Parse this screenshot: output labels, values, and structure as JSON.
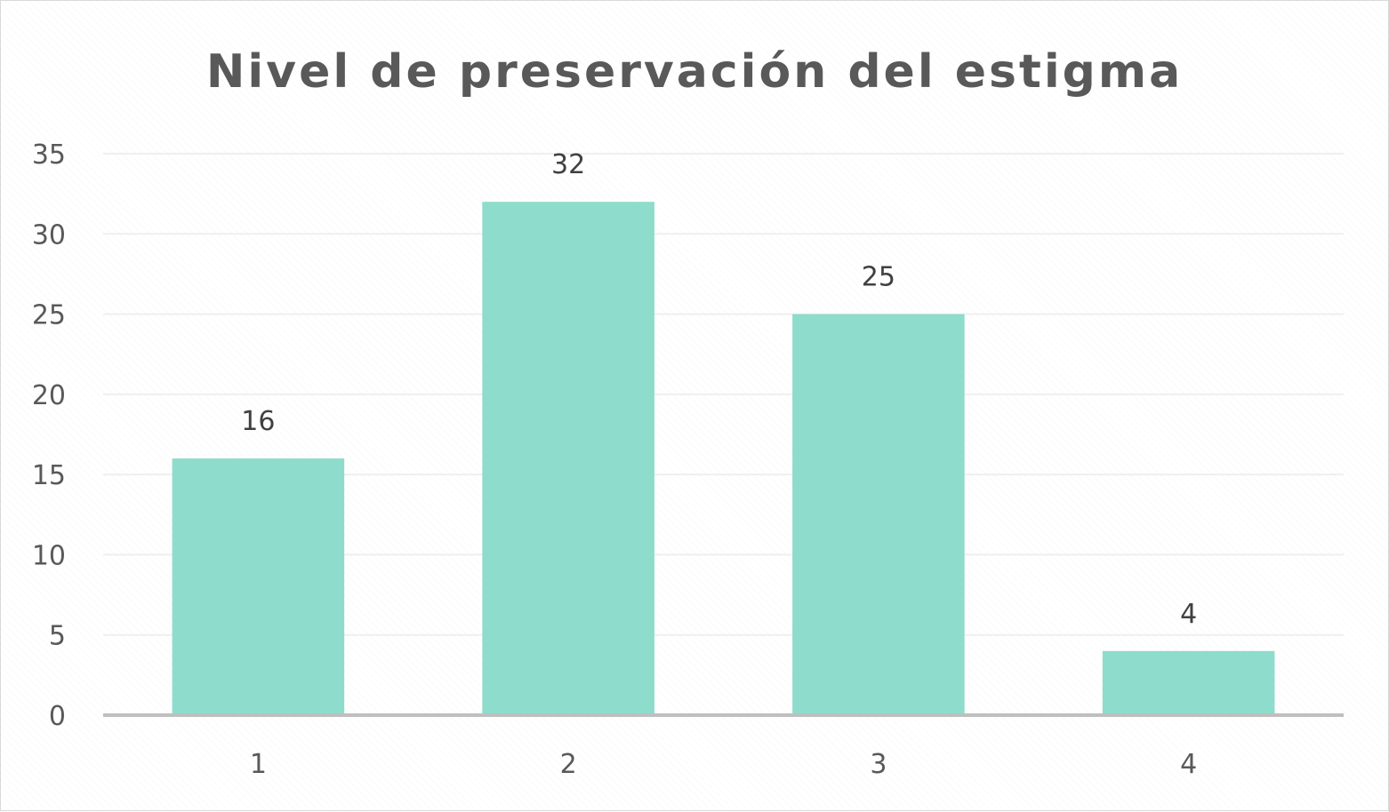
{
  "chart_data": {
    "type": "bar",
    "title": "Nivel de preservación del estigma",
    "categories": [
      "1",
      "2",
      "3",
      "4"
    ],
    "values": [
      16,
      32,
      25,
      4
    ],
    "data_labels": [
      "16",
      "32",
      "25",
      "4"
    ],
    "y_ticks": [
      0,
      5,
      10,
      15,
      20,
      25,
      30,
      35
    ],
    "ylim": [
      0,
      35
    ],
    "xlabel": "",
    "ylabel": "",
    "grid": true,
    "legend": "none",
    "colors": {
      "bar": "#8edccb",
      "gridline": "#efefef",
      "axis": "#bfbfbf"
    }
  }
}
